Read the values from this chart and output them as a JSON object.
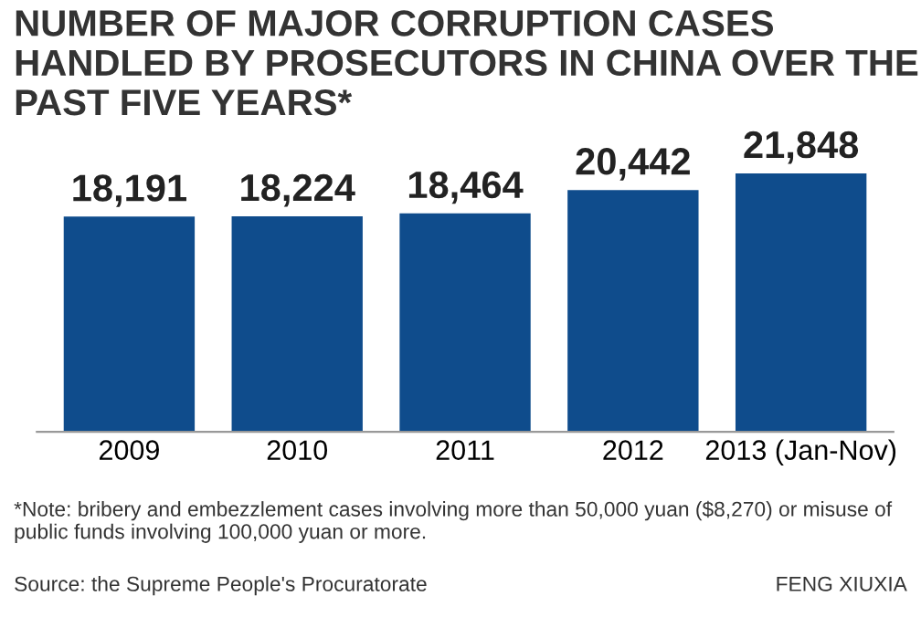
{
  "chart_data": {
    "type": "bar",
    "title": "NUMBER OF MAJOR CORRUPTION CASES HANDLED BY PROSECUTORS IN CHINA OVER THE PAST FIVE YEARS*",
    "categories": [
      "2009",
      "2010",
      "2011",
      "2012",
      "2013 (Jan-Nov)"
    ],
    "values": [
      18191,
      18224,
      18464,
      20442,
      21848
    ],
    "value_labels": [
      "18,191",
      "18,224",
      "18,464",
      "20,442",
      "21,848"
    ],
    "color": "#0f4c8c",
    "tick_labels": "x",
    "grid": false,
    "annotations": [
      "*Note: bribery and embezzlement cases involving more than 50,000 yuan ($8,270) or misuse of public funds involving 100,000 yuan or more.",
      "Source: the Supreme People's Procuratorate",
      "FENG XIUXIA"
    ]
  }
}
